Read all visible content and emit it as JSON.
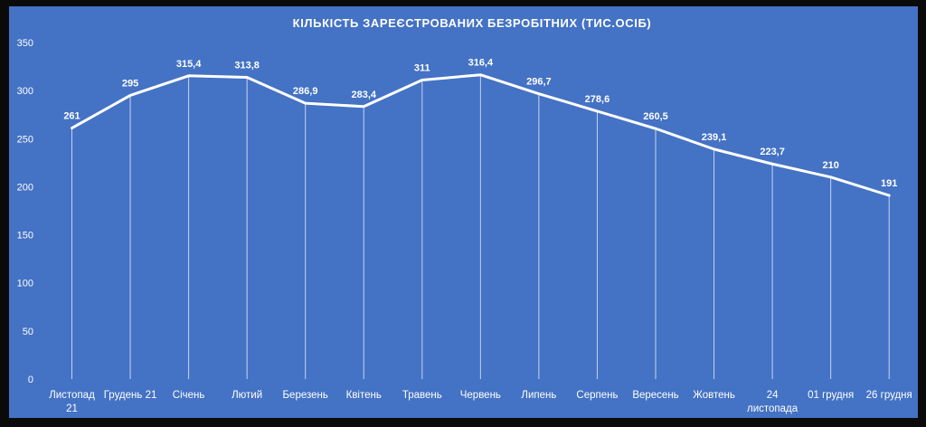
{
  "chart_data": {
    "type": "line",
    "title": "КІЛЬКІСТЬ ЗАРЕЄСТРОВАНИХ БЕЗРОБІТНИХ (ТИС.ОСІБ)",
    "categories": [
      [
        "Листопад",
        "21"
      ],
      [
        "Грудень 21"
      ],
      [
        "Січень"
      ],
      [
        "Лютий"
      ],
      [
        "Березень"
      ],
      [
        "Квітень"
      ],
      [
        "Травень"
      ],
      [
        "Червень"
      ],
      [
        "Липень"
      ],
      [
        "Серпень"
      ],
      [
        "Вересень"
      ],
      [
        "Жовтень"
      ],
      [
        "24",
        "листопада"
      ],
      [
        "01 грудня"
      ],
      [
        "26 грудня"
      ]
    ],
    "values": [
      261,
      295,
      315.4,
      313.8,
      286.9,
      283.4,
      311,
      316.4,
      296.7,
      278.6,
      260.5,
      239.1,
      223.7,
      210,
      191
    ],
    "data_labels": [
      "261",
      "295",
      "315,4",
      "313,8",
      "286,9",
      "283,4",
      "311",
      "316,4",
      "296,7",
      "278,6",
      "260,5",
      "239,1",
      "223,7",
      "210",
      "191"
    ],
    "ylim": [
      0,
      350
    ],
    "yticks": [
      0,
      50,
      100,
      150,
      200,
      250,
      300,
      350
    ],
    "xlabel": "",
    "ylabel": "",
    "grid": "vertical drop lines",
    "legend": "none",
    "colors": {
      "background": "#4472c4",
      "line": "#ffffff",
      "dropline": "#dce6f5",
      "text": "#ffffff"
    }
  }
}
